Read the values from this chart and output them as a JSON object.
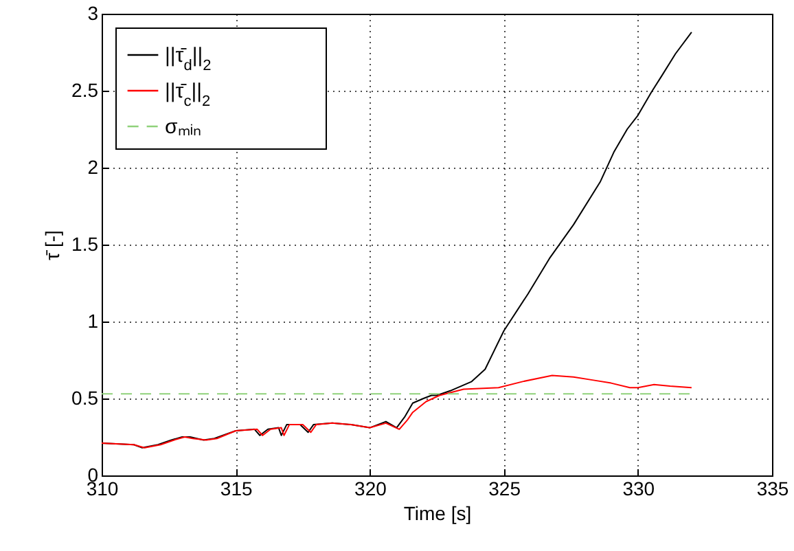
{
  "chart_data": {
    "type": "line",
    "xlabel": "Time [s]",
    "ylabel": "τ̄ [-]",
    "xlim": [
      310,
      335
    ],
    "xticks": [
      310,
      315,
      320,
      325,
      330,
      335
    ],
    "ylim": [
      0,
      3
    ],
    "yticks": [
      0,
      0.5,
      1,
      1.5,
      2,
      2.5,
      3
    ],
    "grid": true,
    "legend": "top left",
    "series": [
      {
        "name": "||τ̄$_{d}$||$_{2}$",
        "color": "#000000",
        "line_style": "solid",
        "x": [
          310,
          311.2,
          311.5,
          312.1,
          312.6,
          313.0,
          313.3,
          313.8,
          314.2,
          315.0,
          315.7,
          315.9,
          316.2,
          316.6,
          316.7,
          316.9,
          317.4,
          317.7,
          317.9,
          318.6,
          319.3,
          320.0,
          320.6,
          321.0,
          321.3,
          321.6,
          322.0,
          322.3,
          322.5,
          323.0,
          323.8,
          324.3,
          325.0,
          325.9,
          326.7,
          327.6,
          328.6,
          329.1,
          329.6,
          330.0,
          330.5,
          330.9,
          331.4,
          332.0
        ],
        "values": [
          0.21,
          0.2,
          0.18,
          0.2,
          0.23,
          0.25,
          0.25,
          0.23,
          0.24,
          0.29,
          0.3,
          0.26,
          0.3,
          0.31,
          0.26,
          0.33,
          0.33,
          0.28,
          0.33,
          0.34,
          0.33,
          0.31,
          0.35,
          0.31,
          0.38,
          0.47,
          0.5,
          0.52,
          0.52,
          0.55,
          0.61,
          0.69,
          0.94,
          1.18,
          1.41,
          1.63,
          1.91,
          2.1,
          2.25,
          2.34,
          2.49,
          2.6,
          2.74,
          2.88
        ]
      },
      {
        "name": "||τ̄$_{c}$||$_{2}$",
        "color": "#ff0000",
        "line_style": "solid",
        "x": [
          310,
          311.2,
          311.6,
          312.2,
          312.7,
          313.1,
          313.4,
          313.9,
          314.3,
          315.0,
          315.8,
          316.0,
          316.3,
          316.7,
          316.8,
          317.0,
          317.5,
          317.8,
          318.0,
          318.6,
          319.3,
          320.0,
          320.6,
          321.1,
          321.4,
          321.6,
          322.1,
          322.6,
          323.5,
          324.8,
          325.7,
          326.8,
          327.6,
          328.3,
          329.0,
          329.7,
          330.0,
          330.6,
          331.2,
          332.0
        ],
        "values": [
          0.21,
          0.2,
          0.18,
          0.2,
          0.23,
          0.25,
          0.24,
          0.23,
          0.24,
          0.29,
          0.3,
          0.26,
          0.3,
          0.31,
          0.26,
          0.33,
          0.33,
          0.28,
          0.33,
          0.34,
          0.33,
          0.31,
          0.34,
          0.3,
          0.36,
          0.41,
          0.48,
          0.52,
          0.56,
          0.57,
          0.61,
          0.65,
          0.64,
          0.62,
          0.6,
          0.57,
          0.57,
          0.59,
          0.58,
          0.57
        ]
      },
      {
        "name": "σₘᵢₙ",
        "color": "#8fd17a",
        "line_style": "dashed",
        "x": [
          310,
          332
        ],
        "values": [
          0.53,
          0.53
        ]
      }
    ]
  }
}
